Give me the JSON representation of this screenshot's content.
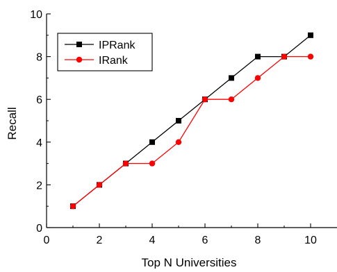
{
  "chart_data": {
    "type": "line",
    "title": "",
    "xlabel": "Top N Universities",
    "ylabel": "Recall",
    "xlim": [
      0,
      11
    ],
    "ylim": [
      0,
      10
    ],
    "xticks": [
      0,
      2,
      4,
      6,
      8,
      10
    ],
    "yticks": [
      0,
      2,
      4,
      6,
      8,
      10
    ],
    "grid": false,
    "legend_position": "top-left",
    "series": [
      {
        "name": "IPRank",
        "color": "#000000",
        "marker": "square",
        "x": [
          1,
          2,
          3,
          4,
          5,
          6,
          7,
          8,
          9,
          10
        ],
        "y": [
          1,
          2,
          3,
          4,
          5,
          6,
          7,
          8,
          8,
          9
        ]
      },
      {
        "name": "IRank",
        "color": "#ff0000",
        "marker": "circle",
        "x": [
          1,
          2,
          3,
          4,
          5,
          6,
          7,
          8,
          9,
          10
        ],
        "y": [
          1,
          2,
          3,
          3,
          4,
          6,
          6,
          7,
          8,
          8
        ]
      }
    ]
  }
}
